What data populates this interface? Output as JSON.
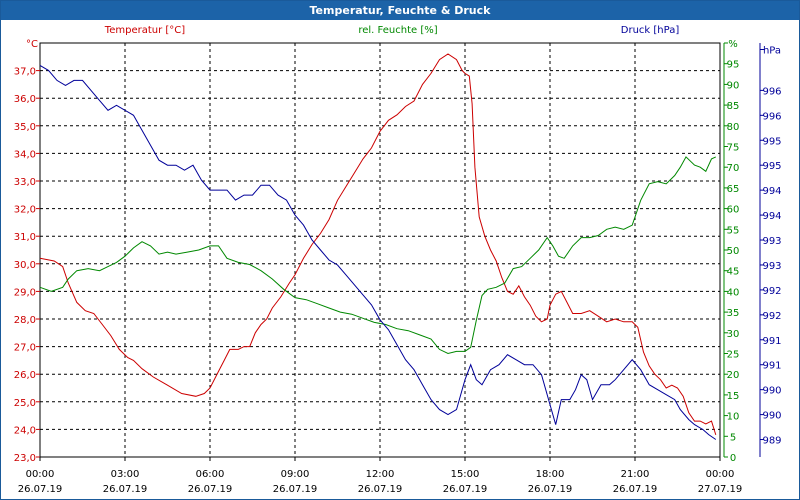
{
  "window": {
    "title": "Temperatur, Feuchte & Druck"
  },
  "chart_data": {
    "type": "line",
    "title": "Temperatur, Feuchte & Druck",
    "x_ticks": [
      {
        "time": "00:00",
        "date": "26.07.19"
      },
      {
        "time": "03:00",
        "date": "26.07.19"
      },
      {
        "time": "06:00",
        "date": "26.07.19"
      },
      {
        "time": "09:00",
        "date": "26.07.19"
      },
      {
        "time": "12:00",
        "date": "26.07.19"
      },
      {
        "time": "15:00",
        "date": "26.07.19"
      },
      {
        "time": "18:00",
        "date": "26.07.19"
      },
      {
        "time": "21:00",
        "date": "26.07.19"
      },
      {
        "time": "00:00",
        "date": "27.07.19"
      }
    ],
    "xlim": [
      0,
      24
    ],
    "grid": true,
    "axes": {
      "temperature": {
        "label": "Temperatur [°C]",
        "unit": "°C",
        "color": "#cc0000",
        "side": "left",
        "ylim": [
          23.0,
          38.0
        ],
        "ticks": [
          "23,0",
          "24,0",
          "25,0",
          "26,0",
          "27,0",
          "28,0",
          "29,0",
          "30,0",
          "31,0",
          "32,0",
          "33,0",
          "34,0",
          "35,0",
          "36,0",
          "37,0"
        ]
      },
      "humidity": {
        "label": "rel. Feuchte [%]",
        "unit": "%",
        "color": "#008800",
        "side": "right",
        "ylim": [
          0,
          100
        ],
        "ticks": [
          "0",
          "5",
          "10",
          "15",
          "20",
          "25",
          "30",
          "35",
          "40",
          "45",
          "50",
          "55",
          "60",
          "65",
          "70",
          "75",
          "80",
          "85",
          "90",
          "95",
          "%"
        ]
      },
      "pressure": {
        "label": "Druck [hPa]",
        "unit": "hPa",
        "color": "#000099",
        "side": "right-outer",
        "ylim": [
          988.65,
          996.95
        ],
        "ticks": [
          "989",
          "990",
          "990",
          "991",
          "991",
          "992",
          "992",
          "993",
          "993",
          "994",
          "994",
          "995",
          "995",
          "996",
          "996",
          "hPa"
        ],
        "tick_values": [
          989.0,
          989.5,
          990.0,
          990.5,
          991.0,
          991.5,
          992.0,
          992.5,
          993.0,
          993.5,
          994.0,
          994.5,
          995.0,
          995.5,
          996.0
        ]
      }
    },
    "series": [
      {
        "name": "Temperatur [°C]",
        "axis": "temperature",
        "color": "#cc0000",
        "points": [
          [
            0.0,
            30.2
          ],
          [
            0.5,
            30.1
          ],
          [
            0.8,
            29.9
          ],
          [
            1.0,
            29.3
          ],
          [
            1.3,
            28.6
          ],
          [
            1.6,
            28.3
          ],
          [
            1.9,
            28.2
          ],
          [
            2.2,
            27.8
          ],
          [
            2.5,
            27.4
          ],
          [
            2.8,
            26.9
          ],
          [
            3.1,
            26.6
          ],
          [
            3.3,
            26.5
          ],
          [
            3.6,
            26.2
          ],
          [
            4.0,
            25.9
          ],
          [
            4.5,
            25.6
          ],
          [
            5.0,
            25.3
          ],
          [
            5.5,
            25.2
          ],
          [
            5.8,
            25.3
          ],
          [
            6.0,
            25.5
          ],
          [
            6.3,
            26.1
          ],
          [
            6.5,
            26.5
          ],
          [
            6.7,
            26.9
          ],
          [
            7.0,
            26.9
          ],
          [
            7.2,
            27.0
          ],
          [
            7.4,
            27.0
          ],
          [
            7.6,
            27.5
          ],
          [
            7.8,
            27.8
          ],
          [
            8.0,
            28.0
          ],
          [
            8.2,
            28.4
          ],
          [
            8.5,
            28.8
          ],
          [
            8.8,
            29.3
          ],
          [
            9.0,
            29.6
          ],
          [
            9.3,
            30.2
          ],
          [
            9.6,
            30.7
          ],
          [
            9.9,
            31.1
          ],
          [
            10.2,
            31.6
          ],
          [
            10.5,
            32.3
          ],
          [
            10.8,
            32.8
          ],
          [
            11.1,
            33.3
          ],
          [
            11.4,
            33.8
          ],
          [
            11.7,
            34.2
          ],
          [
            12.0,
            34.8
          ],
          [
            12.3,
            35.2
          ],
          [
            12.6,
            35.4
          ],
          [
            12.9,
            35.7
          ],
          [
            13.2,
            35.9
          ],
          [
            13.5,
            36.5
          ],
          [
            13.8,
            36.9
          ],
          [
            14.1,
            37.4
          ],
          [
            14.4,
            37.6
          ],
          [
            14.7,
            37.4
          ],
          [
            14.9,
            37.0
          ],
          [
            15.0,
            36.9
          ],
          [
            15.15,
            36.8
          ],
          [
            15.25,
            35.8
          ],
          [
            15.35,
            33.5
          ],
          [
            15.5,
            31.7
          ],
          [
            15.7,
            31.0
          ],
          [
            15.9,
            30.5
          ],
          [
            16.1,
            30.1
          ],
          [
            16.3,
            29.5
          ],
          [
            16.5,
            29.0
          ],
          [
            16.7,
            28.9
          ],
          [
            16.9,
            29.2
          ],
          [
            17.1,
            28.8
          ],
          [
            17.3,
            28.5
          ],
          [
            17.5,
            28.1
          ],
          [
            17.7,
            27.9
          ],
          [
            17.9,
            28.0
          ],
          [
            18.0,
            28.5
          ],
          [
            18.2,
            28.9
          ],
          [
            18.4,
            29.0
          ],
          [
            18.6,
            28.6
          ],
          [
            18.8,
            28.2
          ],
          [
            19.1,
            28.2
          ],
          [
            19.4,
            28.3
          ],
          [
            19.7,
            28.1
          ],
          [
            20.0,
            27.9
          ],
          [
            20.3,
            28.0
          ],
          [
            20.6,
            27.9
          ],
          [
            20.9,
            27.9
          ],
          [
            21.1,
            27.7
          ],
          [
            21.3,
            26.8
          ],
          [
            21.5,
            26.3
          ],
          [
            21.7,
            26.0
          ],
          [
            21.9,
            25.8
          ],
          [
            22.1,
            25.5
          ],
          [
            22.3,
            25.6
          ],
          [
            22.5,
            25.5
          ],
          [
            22.7,
            25.2
          ],
          [
            22.9,
            24.6
          ],
          [
            23.1,
            24.3
          ],
          [
            23.3,
            24.3
          ],
          [
            23.5,
            24.2
          ],
          [
            23.7,
            24.3
          ],
          [
            23.85,
            23.8
          ]
        ]
      },
      {
        "name": "rel. Feuchte [%]",
        "axis": "humidity",
        "color": "#008800",
        "points": [
          [
            0.0,
            41.0
          ],
          [
            0.4,
            40.0
          ],
          [
            0.8,
            41.0
          ],
          [
            1.0,
            43.0
          ],
          [
            1.3,
            45.0
          ],
          [
            1.7,
            45.5
          ],
          [
            2.1,
            45.0
          ],
          [
            2.4,
            46.0
          ],
          [
            2.7,
            47.0
          ],
          [
            3.0,
            48.5
          ],
          [
            3.3,
            50.5
          ],
          [
            3.6,
            52.0
          ],
          [
            3.9,
            51.0
          ],
          [
            4.2,
            49.0
          ],
          [
            4.5,
            49.5
          ],
          [
            4.8,
            49.0
          ],
          [
            5.2,
            49.5
          ],
          [
            5.6,
            50.0
          ],
          [
            6.0,
            51.0
          ],
          [
            6.3,
            51.0
          ],
          [
            6.6,
            48.0
          ],
          [
            7.0,
            47.0
          ],
          [
            7.4,
            46.5
          ],
          [
            7.8,
            45.0
          ],
          [
            8.2,
            43.0
          ],
          [
            8.6,
            40.5
          ],
          [
            9.0,
            38.5
          ],
          [
            9.4,
            38.0
          ],
          [
            9.8,
            37.0
          ],
          [
            10.2,
            36.0
          ],
          [
            10.6,
            35.0
          ],
          [
            11.0,
            34.5
          ],
          [
            11.4,
            33.5
          ],
          [
            11.8,
            32.5
          ],
          [
            12.2,
            32.0
          ],
          [
            12.6,
            31.0
          ],
          [
            13.0,
            30.5
          ],
          [
            13.4,
            29.5
          ],
          [
            13.8,
            28.5
          ],
          [
            14.1,
            26.0
          ],
          [
            14.4,
            25.0
          ],
          [
            14.7,
            25.5
          ],
          [
            15.0,
            25.5
          ],
          [
            15.2,
            26.5
          ],
          [
            15.4,
            33.0
          ],
          [
            15.6,
            39.0
          ],
          [
            15.8,
            40.5
          ],
          [
            16.1,
            41.0
          ],
          [
            16.4,
            42.0
          ],
          [
            16.7,
            45.5
          ],
          [
            17.0,
            46.0
          ],
          [
            17.3,
            48.0
          ],
          [
            17.6,
            50.0
          ],
          [
            17.9,
            53.0
          ],
          [
            18.1,
            51.0
          ],
          [
            18.3,
            48.5
          ],
          [
            18.5,
            48.0
          ],
          [
            18.8,
            51.0
          ],
          [
            19.1,
            53.0
          ],
          [
            19.4,
            53.0
          ],
          [
            19.7,
            53.5
          ],
          [
            20.0,
            55.0
          ],
          [
            20.3,
            55.5
          ],
          [
            20.6,
            55.0
          ],
          [
            20.9,
            56.0
          ],
          [
            21.2,
            62.0
          ],
          [
            21.5,
            66.0
          ],
          [
            21.8,
            66.5
          ],
          [
            22.1,
            66.0
          ],
          [
            22.4,
            68.0
          ],
          [
            22.6,
            70.0
          ],
          [
            22.8,
            72.5
          ],
          [
            23.1,
            70.5
          ],
          [
            23.3,
            70.0
          ],
          [
            23.5,
            69.0
          ],
          [
            23.7,
            72.0
          ],
          [
            23.85,
            72.5
          ]
        ]
      },
      {
        "name": "Druck [hPa]",
        "axis": "pressure",
        "color": "#000099",
        "points": [
          [
            0.0,
            996.5
          ],
          [
            0.3,
            996.4
          ],
          [
            0.6,
            996.2
          ],
          [
            0.9,
            996.1
          ],
          [
            1.2,
            996.2
          ],
          [
            1.5,
            996.2
          ],
          [
            1.8,
            996.0
          ],
          [
            2.1,
            995.8
          ],
          [
            2.4,
            995.6
          ],
          [
            2.7,
            995.7
          ],
          [
            3.0,
            995.6
          ],
          [
            3.3,
            995.5
          ],
          [
            3.6,
            995.2
          ],
          [
            3.9,
            994.9
          ],
          [
            4.2,
            994.6
          ],
          [
            4.5,
            994.5
          ],
          [
            4.8,
            994.5
          ],
          [
            5.1,
            994.4
          ],
          [
            5.4,
            994.5
          ],
          [
            5.7,
            994.2
          ],
          [
            6.0,
            994.0
          ],
          [
            6.3,
            994.0
          ],
          [
            6.6,
            994.0
          ],
          [
            6.9,
            993.8
          ],
          [
            7.2,
            993.9
          ],
          [
            7.5,
            993.9
          ],
          [
            7.8,
            994.1
          ],
          [
            8.1,
            994.1
          ],
          [
            8.4,
            993.9
          ],
          [
            8.7,
            993.8
          ],
          [
            9.0,
            993.5
          ],
          [
            9.3,
            993.3
          ],
          [
            9.6,
            993.0
          ],
          [
            9.9,
            992.8
          ],
          [
            10.2,
            992.6
          ],
          [
            10.5,
            992.5
          ],
          [
            10.8,
            992.3
          ],
          [
            11.1,
            992.1
          ],
          [
            11.4,
            991.9
          ],
          [
            11.7,
            991.7
          ],
          [
            12.0,
            991.4
          ],
          [
            12.3,
            991.2
          ],
          [
            12.6,
            990.9
          ],
          [
            12.9,
            990.6
          ],
          [
            13.2,
            990.4
          ],
          [
            13.5,
            990.1
          ],
          [
            13.8,
            989.8
          ],
          [
            14.1,
            989.6
          ],
          [
            14.4,
            989.5
          ],
          [
            14.7,
            989.6
          ],
          [
            15.0,
            990.2
          ],
          [
            15.2,
            990.5
          ],
          [
            15.4,
            990.2
          ],
          [
            15.6,
            990.1
          ],
          [
            15.9,
            990.4
          ],
          [
            16.2,
            990.5
          ],
          [
            16.5,
            990.7
          ],
          [
            16.8,
            990.6
          ],
          [
            17.1,
            990.5
          ],
          [
            17.4,
            990.5
          ],
          [
            17.7,
            990.3
          ],
          [
            18.0,
            989.7
          ],
          [
            18.2,
            989.3
          ],
          [
            18.4,
            989.8
          ],
          [
            18.7,
            989.8
          ],
          [
            18.9,
            990.0
          ],
          [
            19.1,
            990.3
          ],
          [
            19.3,
            990.2
          ],
          [
            19.5,
            989.8
          ],
          [
            19.8,
            990.1
          ],
          [
            20.1,
            990.1
          ],
          [
            20.3,
            990.2
          ],
          [
            20.6,
            990.4
          ],
          [
            20.9,
            990.6
          ],
          [
            21.2,
            990.4
          ],
          [
            21.5,
            990.1
          ],
          [
            21.8,
            990.0
          ],
          [
            22.1,
            989.9
          ],
          [
            22.4,
            989.8
          ],
          [
            22.6,
            989.6
          ],
          [
            22.9,
            989.4
          ],
          [
            23.1,
            989.3
          ],
          [
            23.4,
            989.2
          ],
          [
            23.6,
            989.1
          ],
          [
            23.85,
            989.0
          ]
        ]
      }
    ]
  }
}
